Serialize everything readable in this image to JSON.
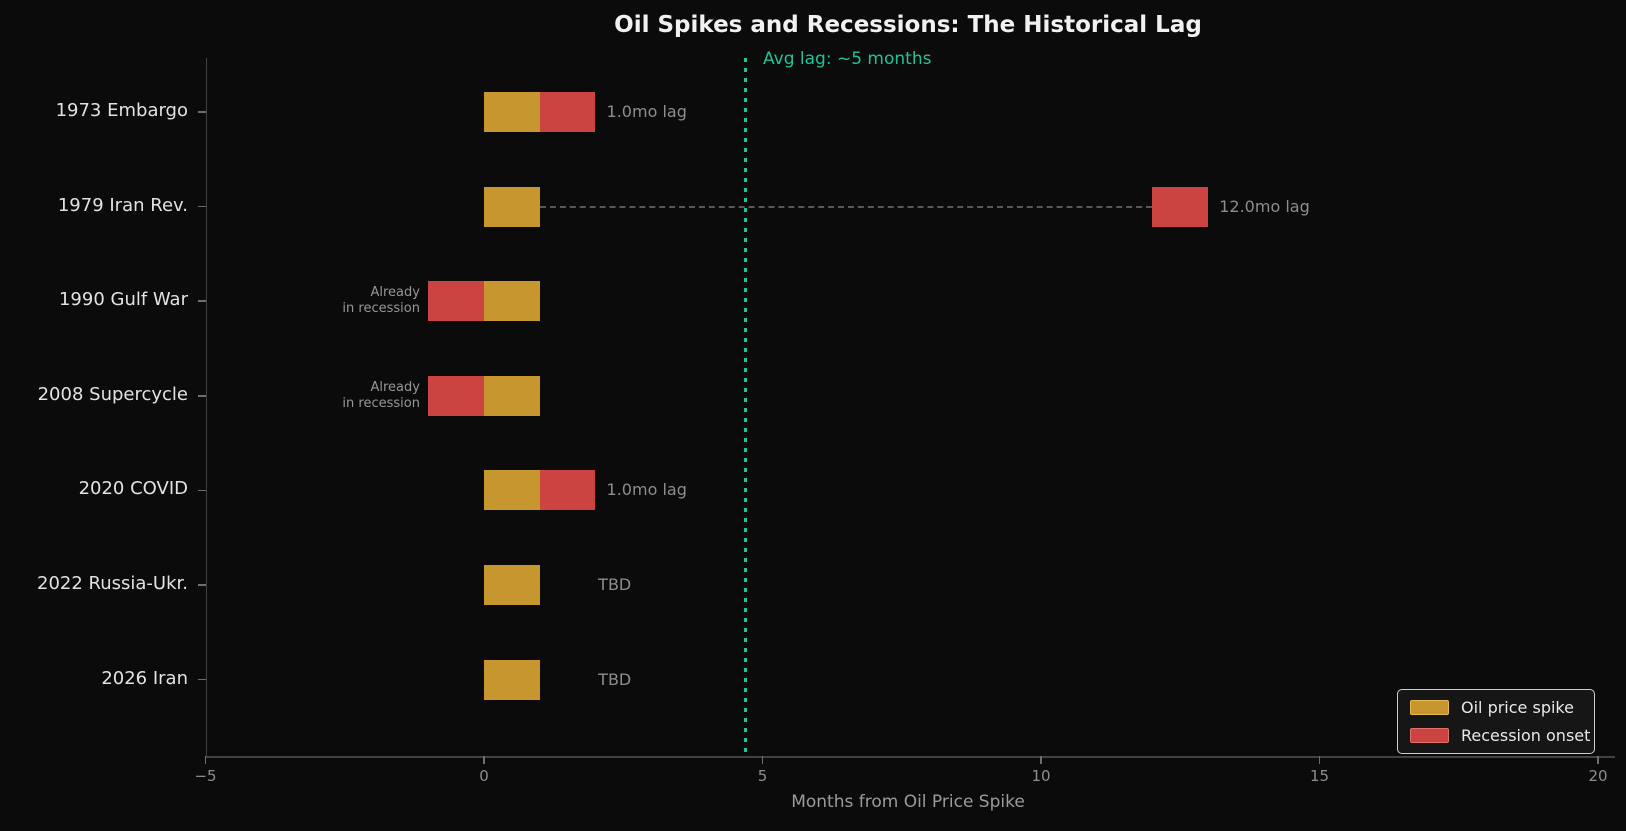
{
  "chart_data": {
    "type": "bar",
    "title": "Oil Spikes and Recessions: The Historical Lag",
    "xlabel": "Months from Oil Price Spike",
    "xlim": [
      -5,
      20.3
    ],
    "xticks": [
      -5,
      0,
      5,
      10,
      15,
      20
    ],
    "grid": false,
    "legend_position": "lower right",
    "avg_line": {
      "x": 4.7,
      "label": "Avg lag: ~5 months"
    },
    "legend": [
      {
        "label": "Oil price spike",
        "color": "#c8962f"
      },
      {
        "label": "Recession onset",
        "color": "#cc4441"
      }
    ],
    "colors": {
      "spike": "#c8962f",
      "recession": "#cc4441",
      "avg_line": "#1ec39b",
      "background": "#0b0b0b"
    },
    "categories": [
      "1973 Embargo",
      "1979 Iran Rev.",
      "1990 Gulf War",
      "2008 Supercycle",
      "2020 COVID",
      "2022 Russia-Ukr.",
      "2026 Iran"
    ],
    "rows": [
      {
        "label": "1973 Embargo",
        "spike": [
          0,
          1
        ],
        "recession": [
          1,
          2
        ],
        "connector": null,
        "annotation": {
          "text": "1.0mo lag",
          "x": 2.2,
          "align": "left"
        }
      },
      {
        "label": "1979 Iran Rev.",
        "spike": [
          0,
          1
        ],
        "recession": [
          12,
          13
        ],
        "connector": [
          1,
          12
        ],
        "annotation": {
          "text": "12.0mo lag",
          "x": 13.2,
          "align": "left"
        }
      },
      {
        "label": "1990 Gulf War",
        "spike": [
          0,
          1
        ],
        "recession": [
          -1,
          0
        ],
        "connector": null,
        "annotation": {
          "text": "Already\nin recession",
          "x": -1.15,
          "align": "right"
        }
      },
      {
        "label": "2008 Supercycle",
        "spike": [
          0,
          1
        ],
        "recession": [
          -1,
          0
        ],
        "connector": null,
        "annotation": {
          "text": "Already\nin recession",
          "x": -1.15,
          "align": "right"
        }
      },
      {
        "label": "2020 COVID",
        "spike": [
          0,
          1
        ],
        "recession": [
          1,
          2
        ],
        "connector": null,
        "annotation": {
          "text": "1.0mo lag",
          "x": 2.2,
          "align": "left"
        }
      },
      {
        "label": "2022 Russia-Ukr.",
        "spike": [
          0,
          1
        ],
        "recession": null,
        "connector": null,
        "annotation": {
          "text": "TBD",
          "x": 2.05,
          "align": "left"
        }
      },
      {
        "label": "2026 Iran",
        "spike": [
          0,
          1
        ],
        "recession": null,
        "connector": null,
        "annotation": {
          "text": "TBD",
          "x": 2.05,
          "align": "left"
        }
      }
    ]
  }
}
